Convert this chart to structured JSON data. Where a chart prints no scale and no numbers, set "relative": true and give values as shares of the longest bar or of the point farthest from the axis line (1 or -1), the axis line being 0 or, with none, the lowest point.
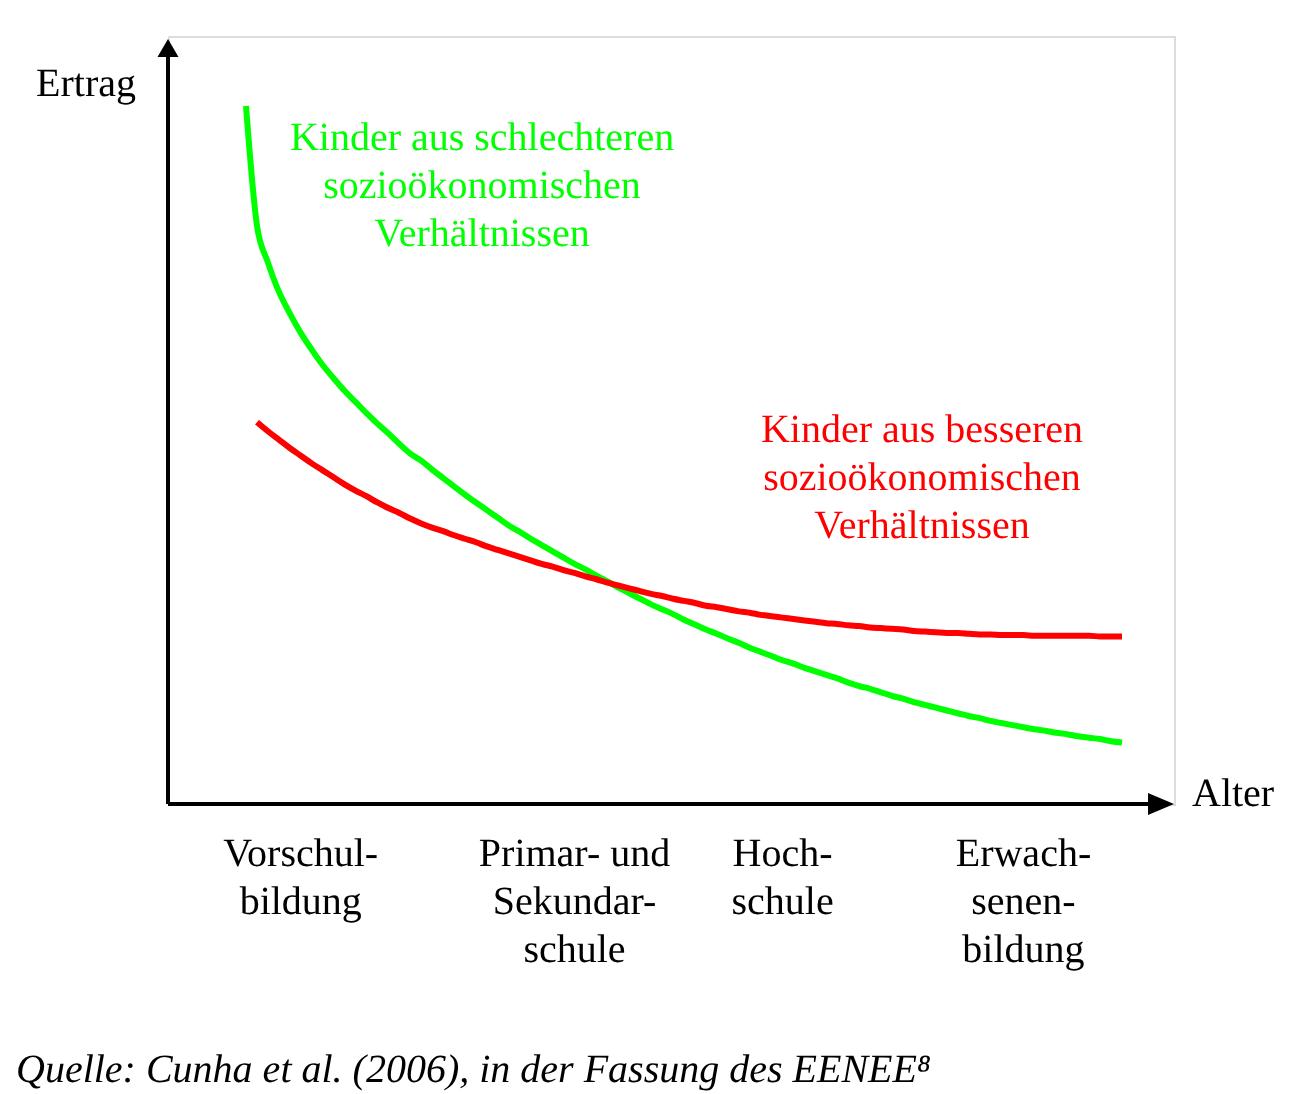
{
  "chart_data": {
    "type": "line",
    "relative": true,
    "xlabel": "Alter",
    "ylabel": "Ertrag",
    "categories": [
      null,
      null,
      null,
      null,
      null,
      "Vorschul- bildung",
      null,
      null,
      null,
      null,
      null,
      null,
      null,
      null,
      null,
      null,
      null,
      null,
      null,
      null,
      null,
      null,
      null,
      null,
      null,
      null,
      null,
      null,
      null,
      null,
      "Primar- und Sekundar- schule",
      null,
      null,
      null,
      null,
      null,
      null,
      null,
      null,
      null,
      null,
      null,
      null,
      null,
      null,
      null,
      null,
      null,
      null,
      "Hoch- schule",
      null,
      null,
      null,
      null,
      null,
      null,
      null,
      null,
      null,
      null,
      null,
      null,
      null,
      null,
      null,
      null,
      null,
      null,
      null,
      null,
      null,
      "Erwach- senen- bildung",
      null,
      null,
      null,
      null,
      null,
      null,
      null,
      null,
      null
    ],
    "series": [
      {
        "name": "Kinder aus schlechteren sozioökonomischen Verhältnissen",
        "color": "#00ff00",
        "values": [
          1.0,
          0.829,
          0.776,
          0.734,
          0.703,
          0.675,
          0.651,
          0.629,
          0.61,
          0.592,
          0.576,
          0.56,
          0.545,
          0.531,
          0.516,
          0.502,
          0.492,
          0.479,
          0.467,
          0.455,
          0.443,
          0.432,
          0.421,
          0.41,
          0.399,
          0.39,
          0.38,
          0.371,
          0.362,
          0.353,
          0.344,
          0.336,
          0.327,
          0.319,
          0.31,
          0.302,
          0.294,
          0.286,
          0.279,
          0.272,
          0.264,
          0.257,
          0.25,
          0.244,
          0.237,
          0.231,
          0.224,
          0.218,
          0.212,
          0.206,
          0.201,
          0.195,
          0.19,
          0.185,
          0.18,
          0.174,
          0.169,
          0.165,
          0.16,
          0.155,
          0.151,
          0.146,
          0.142,
          0.138,
          0.134,
          0.13,
          0.126,
          0.123,
          0.119,
          0.116,
          0.113,
          0.11,
          0.107,
          0.105,
          0.102,
          0.1,
          0.097,
          0.095,
          0.093,
          0.09,
          0.088
        ]
      },
      {
        "name": "Kinder aus besseren sozioökonomischen Verhältnissen",
        "color": "#ff0000",
        "values": [
          null,
          0.547,
          0.534,
          0.522,
          0.51,
          0.499,
          0.488,
          0.478,
          0.468,
          0.458,
          0.449,
          0.441,
          0.432,
          0.424,
          0.417,
          0.409,
          0.402,
          0.396,
          0.391,
          0.385,
          0.38,
          0.375,
          0.369,
          0.364,
          0.359,
          0.354,
          0.349,
          0.344,
          0.34,
          0.335,
          0.331,
          0.326,
          0.322,
          0.317,
          0.313,
          0.309,
          0.305,
          0.301,
          0.298,
          0.294,
          0.291,
          0.288,
          0.284,
          0.282,
          0.279,
          0.276,
          0.274,
          0.271,
          0.269,
          0.267,
          0.265,
          0.263,
          0.261,
          0.259,
          0.258,
          0.256,
          0.255,
          0.253,
          0.252,
          0.251,
          0.25,
          0.248,
          0.247,
          0.246,
          0.245,
          0.245,
          0.244,
          0.243,
          0.243,
          0.242,
          0.242,
          0.242,
          0.241,
          0.241,
          0.241,
          0.241,
          0.241,
          0.241,
          0.24,
          0.24,
          0.24
        ]
      }
    ],
    "annotations": [
      "Quelle: Cunha et al. (2006), in der Fassung des EENEE⁸"
    ]
  }
}
